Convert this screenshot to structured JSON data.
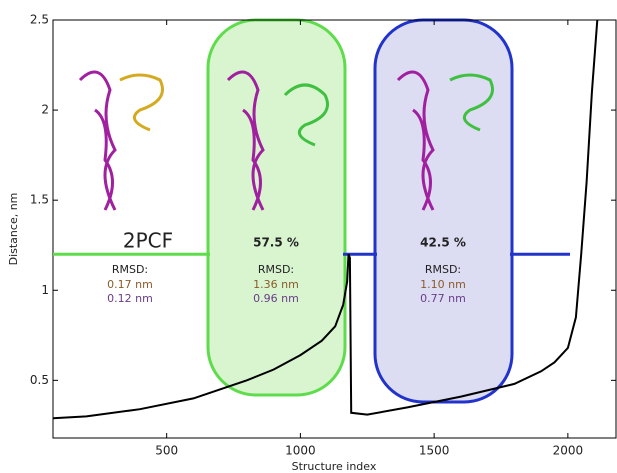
{
  "chart_data": {
    "type": "line",
    "x_label": "Structure index",
    "y_label": "Distance, nm",
    "xlim": [
      75,
      2180
    ],
    "ylim": [
      0.18,
      2.5
    ],
    "xticks": [
      500,
      1000,
      1500,
      2000
    ],
    "yticks": [
      0.5,
      1,
      1.5,
      2,
      2.5
    ],
    "threshold": 1.2,
    "series": [
      {
        "color": "#000000",
        "x": [
          75,
          200,
          400,
          600,
          800,
          900,
          1000,
          1080,
          1130,
          1160,
          1175,
          1180,
          1185,
          1190,
          1250,
          1400,
          1600,
          1800,
          1900,
          1950,
          2000,
          2030,
          2050,
          2070,
          2090,
          2110
        ],
        "values": [
          0.29,
          0.3,
          0.34,
          0.4,
          0.5,
          0.56,
          0.64,
          0.72,
          0.8,
          0.92,
          1.05,
          1.2,
          1.18,
          0.32,
          0.31,
          0.35,
          0.41,
          0.48,
          0.55,
          0.6,
          0.68,
          0.85,
          1.2,
          1.6,
          2.1,
          2.5
        ]
      }
    ],
    "annotations": {
      "reference": {
        "label": "2PCF",
        "rmsd_title": "RMSD:",
        "rmsd1": "0.17 nm",
        "rmsd2": "0.12 nm"
      },
      "cluster1": {
        "label": "57.5 %",
        "rmsd_title": "RMSD:",
        "rmsd1": "1.36 nm",
        "rmsd2": "0.96 nm"
      },
      "cluster2": {
        "label": "42.5 %",
        "rmsd_title": "RMSD:",
        "rmsd1": "1.10 nm",
        "rmsd2": "0.77 nm"
      }
    }
  }
}
